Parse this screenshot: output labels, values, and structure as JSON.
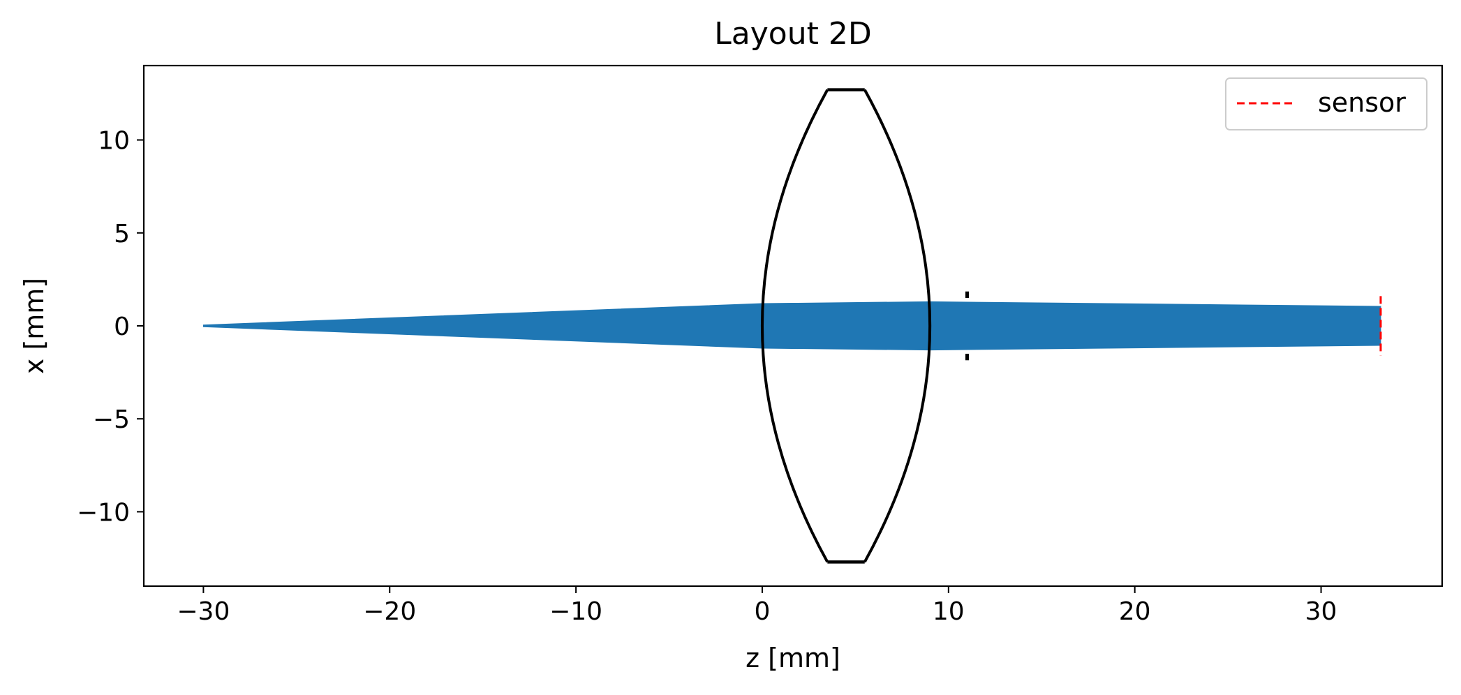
{
  "chart_data": {
    "type": "line",
    "title": "Layout 2D",
    "xlabel": "z [mm]",
    "ylabel": "x [mm]",
    "xlim": [
      -33.2,
      36.5
    ],
    "ylim": [
      -14,
      14
    ],
    "xticks": [
      -30,
      -20,
      -10,
      0,
      10,
      20,
      30
    ],
    "xtick_labels": [
      "−30",
      "−20",
      "−10",
      "0",
      "10",
      "20",
      "30"
    ],
    "yticks": [
      -10,
      -5,
      0,
      5,
      10
    ],
    "ytick_labels": [
      "−10",
      "−5",
      "0",
      "5",
      "10"
    ],
    "grid": false,
    "legend": {
      "position": "top-right",
      "entries": [
        {
          "label": "sensor",
          "color": "#ff0000",
          "style": "dashed"
        }
      ]
    },
    "colors": {
      "ray_bundle": "#1f77b4",
      "lens": "#000000",
      "aperture": "#000000",
      "sensor": "#ff0000"
    },
    "ray_bundle": {
      "upper": [
        [
          -30,
          0.05
        ],
        [
          0,
          1.2
        ],
        [
          9,
          1.3
        ],
        [
          33.2,
          1.05
        ]
      ],
      "lower": [
        [
          -30,
          -0.05
        ],
        [
          0,
          -1.2
        ],
        [
          9,
          -1.3
        ],
        [
          33.2,
          -1.05
        ]
      ]
    },
    "lens": {
      "front_surface": {
        "vertex_z": 0,
        "edge_z": 3.5,
        "half_height": 12.7
      },
      "back_surface": {
        "vertex_z": 9,
        "edge_z": 5.5,
        "half_height": 12.7
      }
    },
    "aperture": {
      "z": 11,
      "inner": 1.5,
      "outer": 1.85
    },
    "sensor": {
      "z": 33.2,
      "half_height": 1.6
    }
  }
}
